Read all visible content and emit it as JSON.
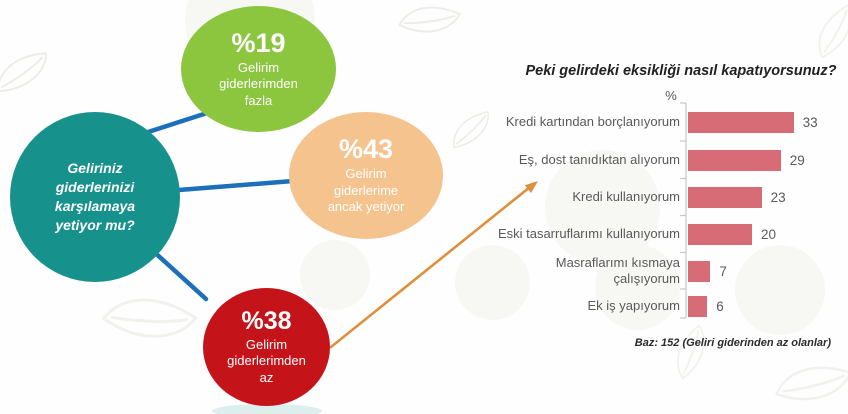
{
  "bubbles": {
    "question": {
      "text": "Geliriniz\ngiderlerinizi\nkarşılamaya\nyetiyor mu?",
      "color": "#17918c"
    },
    "answers": [
      {
        "pct": "%19",
        "label": "Gelirim\ngiderlerimden\nfazla",
        "color": "#8cc63f"
      },
      {
        "pct": "%43",
        "label": "Gelirim\ngiderlerime\nancak yetiyor",
        "color": "#f5c38e"
      },
      {
        "pct": "%38",
        "label": "Gelirim\ngiderlerimden\naz",
        "color": "#c51419"
      }
    ]
  },
  "colors": {
    "connector_blue": "#1c6fb9",
    "arrow_orange": "#dd8f3c",
    "bar_fill": "#d76c77",
    "axis_gray": "#c9c9c9",
    "label_gray": "#595959",
    "title_dark": "#212121"
  },
  "chart_data": [
    {
      "type": "pie",
      "layout": "linked-bubbles",
      "title": "Geliriniz giderlerinizi karşılamaya yetiyor mu?",
      "unit": "%",
      "categories": [
        "Gelirim giderlerimden fazla",
        "Gelirim giderlerime ancak yetiyor",
        "Gelirim giderlerimden az"
      ],
      "values": [
        19,
        43,
        38
      ],
      "colors": [
        "#8cc63f",
        "#f5c38e",
        "#c51419"
      ]
    },
    {
      "type": "bar",
      "orientation": "horizontal",
      "title": "Peki gelirdeki eksikliği nasıl kapatıyorsunuz?",
      "xlabel": "%",
      "xlim": [
        0,
        35
      ],
      "grid": false,
      "data_labels": true,
      "bar_color": "#d76c77",
      "categories": [
        "Kredi kartından borçlanıyorum",
        "Eş, dost tanıdıktan alıyorum",
        "Kredi kullanıyorum",
        "Eski tasarruflarımı kullanıyorum",
        "Masraflarımı kısmaya çalışıyorum",
        "Ek iş yapıyorum"
      ],
      "values": [
        33,
        29,
        23,
        20,
        7,
        6
      ],
      "note": "Baz: 152 (Geliri giderinden az olanlar)"
    }
  ]
}
